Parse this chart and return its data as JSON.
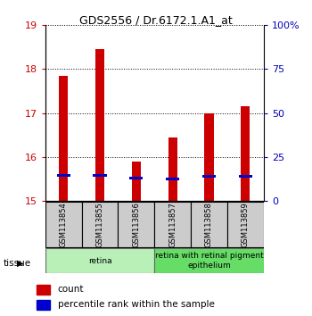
{
  "title": "GDS2556 / Dr.6172.1.A1_at",
  "samples": [
    "GSM113854",
    "GSM113855",
    "GSM113856",
    "GSM113857",
    "GSM113858",
    "GSM113859"
  ],
  "red_values": [
    17.85,
    18.45,
    15.9,
    16.45,
    17.0,
    17.15
  ],
  "blue_values": [
    15.58,
    15.58,
    15.52,
    15.5,
    15.55,
    15.55
  ],
  "ylim_left": [
    15,
    19
  ],
  "ylim_right": [
    0,
    100
  ],
  "left_ticks": [
    15,
    16,
    17,
    18,
    19
  ],
  "right_ticks": [
    0,
    25,
    50,
    75,
    100
  ],
  "right_tick_labels": [
    "0",
    "25",
    "50",
    "75",
    "100%"
  ],
  "tissue_groups": [
    {
      "label": "retina",
      "start": 0,
      "end": 3,
      "color": "#b8f0b8"
    },
    {
      "label": "retina with retinal pigment\nepithelium",
      "start": 3,
      "end": 6,
      "color": "#66dd66"
    }
  ],
  "bar_width": 0.25,
  "blue_bar_height": 0.07,
  "red_color": "#cc0000",
  "blue_color": "#0000cc",
  "sample_box_color": "#cccccc",
  "left_tick_color": "#cc0000",
  "right_tick_color": "#0000bb",
  "legend_items": [
    {
      "label": "count",
      "color": "#cc0000"
    },
    {
      "label": "percentile rank within the sample",
      "color": "#0000cc"
    }
  ]
}
